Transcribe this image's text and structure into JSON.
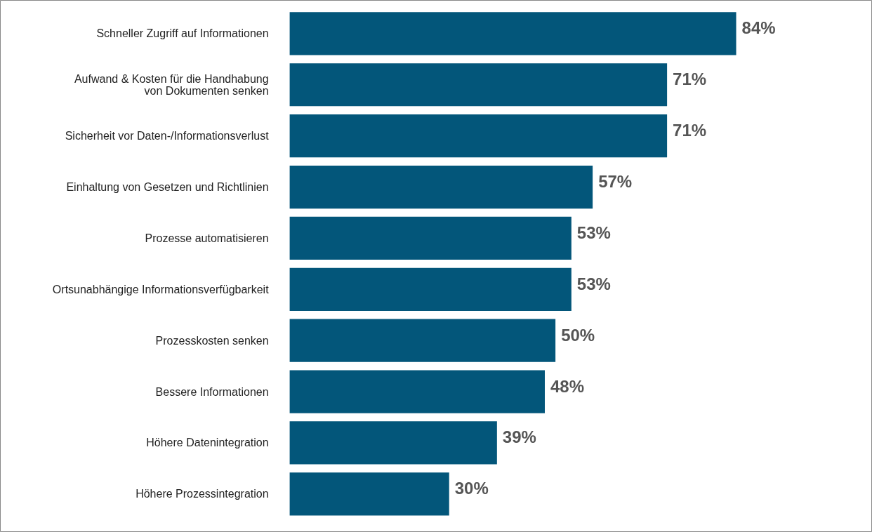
{
  "chart_data": {
    "type": "bar",
    "orientation": "horizontal",
    "categories": [
      "Schneller Zugriff auf Informationen",
      "Aufwand & Kosten für die Handhabung\nvon Dokumenten senken",
      "Sicherheit vor Daten-/Informationsverlust",
      "Einhaltung von Gesetzen und Richtlinien",
      "Prozesse automatisieren",
      "Ortsunabhängige Informationsverfügbarkeit",
      "Prozesskosten senken",
      "Bessere Informationen",
      "Höhere Datenintegration",
      "Höhere Prozessintegration"
    ],
    "values": [
      84,
      71,
      71,
      57,
      53,
      53,
      50,
      48,
      39,
      30
    ],
    "value_labels": [
      "84%",
      "71%",
      "71%",
      "57%",
      "53%",
      "53%",
      "50%",
      "48%",
      "39%",
      "30%"
    ],
    "color": "#03567a",
    "grid": false
  }
}
